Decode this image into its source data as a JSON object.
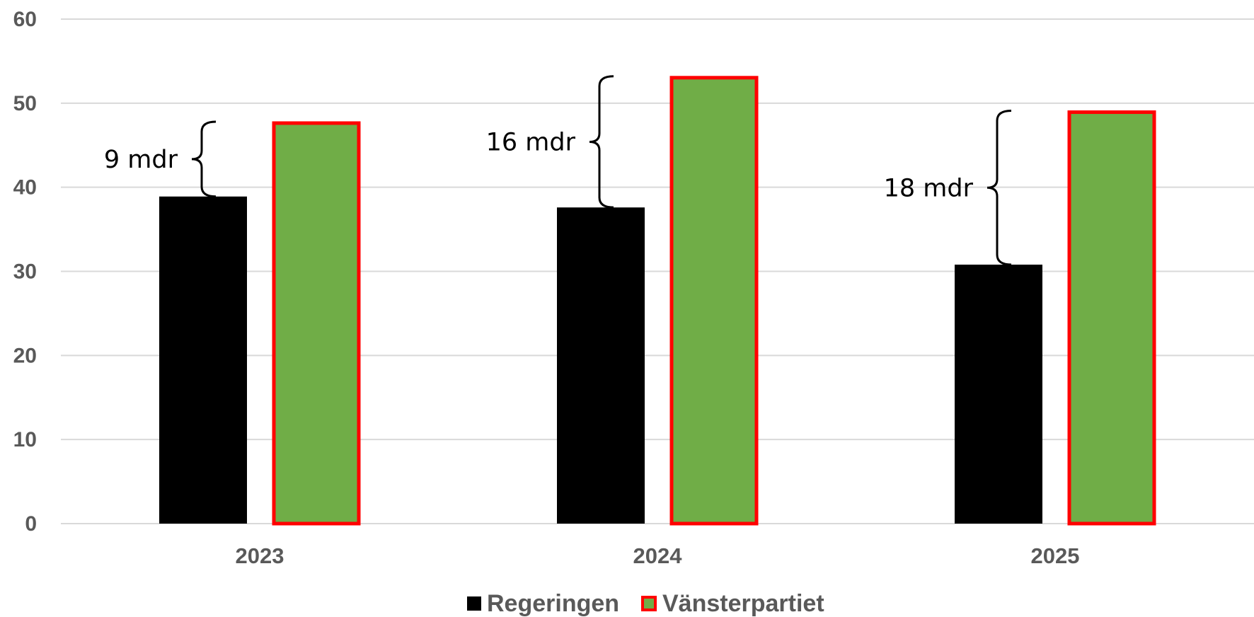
{
  "chart_data": {
    "type": "bar",
    "categories": [
      "2023",
      "2024",
      "2025"
    ],
    "series": [
      {
        "name": "Regeringen",
        "values": [
          38.9,
          37.6,
          30.8
        ],
        "color": "#000000"
      },
      {
        "name": "Vänsterpartiet",
        "values": [
          47.8,
          53.2,
          49.1
        ],
        "color": "#70AD47",
        "border_color": "#FF0000"
      }
    ],
    "ylim": [
      0,
      60
    ],
    "yticks": [
      "0",
      "10",
      "20",
      "30",
      "40",
      "50",
      "60"
    ],
    "grid": true,
    "legend": "bottom",
    "annotations": [
      {
        "label": "9 mdr",
        "category": "2023",
        "from": 38.9,
        "to": 47.8
      },
      {
        "label": "16 mdr",
        "category": "2024",
        "from": 37.6,
        "to": 53.2
      },
      {
        "label": "18 mdr",
        "category": "2025",
        "from": 30.8,
        "to": 49.1
      }
    ],
    "colors": {
      "grid": "#D9D9D9",
      "axis_text": "#595959"
    }
  }
}
